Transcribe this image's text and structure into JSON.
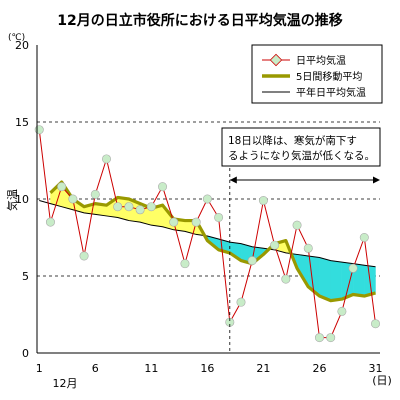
{
  "chart_data": {
    "type": "line",
    "title": "12月の日立市役所における日平均気温の推移",
    "ylabel": "気温",
    "yunit": "(℃)",
    "xunit": "(日)",
    "month_label": "12月",
    "xlim": [
      1,
      31
    ],
    "ylim": [
      0,
      20
    ],
    "yticks": [
      0,
      5,
      10,
      15,
      20
    ],
    "xticks": [
      1,
      6,
      11,
      16,
      21,
      26,
      31
    ],
    "grid": "horizontal dashed",
    "legend_position": "top-right",
    "x": [
      1,
      2,
      3,
      4,
      5,
      6,
      7,
      8,
      9,
      10,
      11,
      12,
      13,
      14,
      15,
      16,
      17,
      18,
      19,
      20,
      21,
      22,
      23,
      24,
      25,
      26,
      27,
      28,
      29,
      30,
      31
    ],
    "series": [
      {
        "name": "日平均気温",
        "values": [
          14.5,
          8.5,
          10.8,
          10.0,
          6.3,
          10.3,
          12.6,
          9.5,
          9.5,
          9.3,
          9.5,
          10.8,
          8.5,
          5.8,
          8.5,
          10.0,
          8.8,
          2.0,
          3.3,
          6.0,
          9.9,
          7.0,
          4.8,
          8.3,
          6.8,
          1.0,
          1.0,
          2.7,
          5.5,
          7.5,
          1.9
        ],
        "color": "#cc0000",
        "marker_fill": "#c8ecc8"
      },
      {
        "name": "5日間移動平均",
        "values": [
          null,
          10.4,
          11.1,
          10.0,
          9.5,
          9.7,
          9.6,
          10.1,
          10.0,
          9.7,
          9.4,
          9.6,
          8.7,
          8.6,
          8.6,
          7.3,
          6.7,
          6.5,
          6.0,
          5.8,
          6.4,
          7.1,
          7.3,
          5.5,
          4.3,
          3.7,
          3.4,
          3.5,
          3.8,
          3.7,
          3.9
        ],
        "color": "#999900"
      },
      {
        "name": "平年日平均気温",
        "values": [
          9.9,
          9.7,
          9.5,
          9.3,
          9.1,
          9.0,
          8.9,
          8.8,
          8.6,
          8.5,
          8.3,
          8.2,
          8.0,
          7.9,
          7.7,
          7.6,
          7.4,
          7.2,
          7.1,
          6.9,
          6.8,
          6.7,
          6.5,
          6.4,
          6.3,
          6.2,
          6.0,
          5.9,
          5.8,
          5.7,
          5.6
        ],
        "color": "#000000"
      }
    ],
    "fill_above_color": "#ffff66",
    "fill_below_color": "#33dddd",
    "annotation": {
      "lines": [
        "18日以降は、寒気が南下す",
        "るようになり気温が低くなる。"
      ],
      "marker_x": 18
    }
  }
}
